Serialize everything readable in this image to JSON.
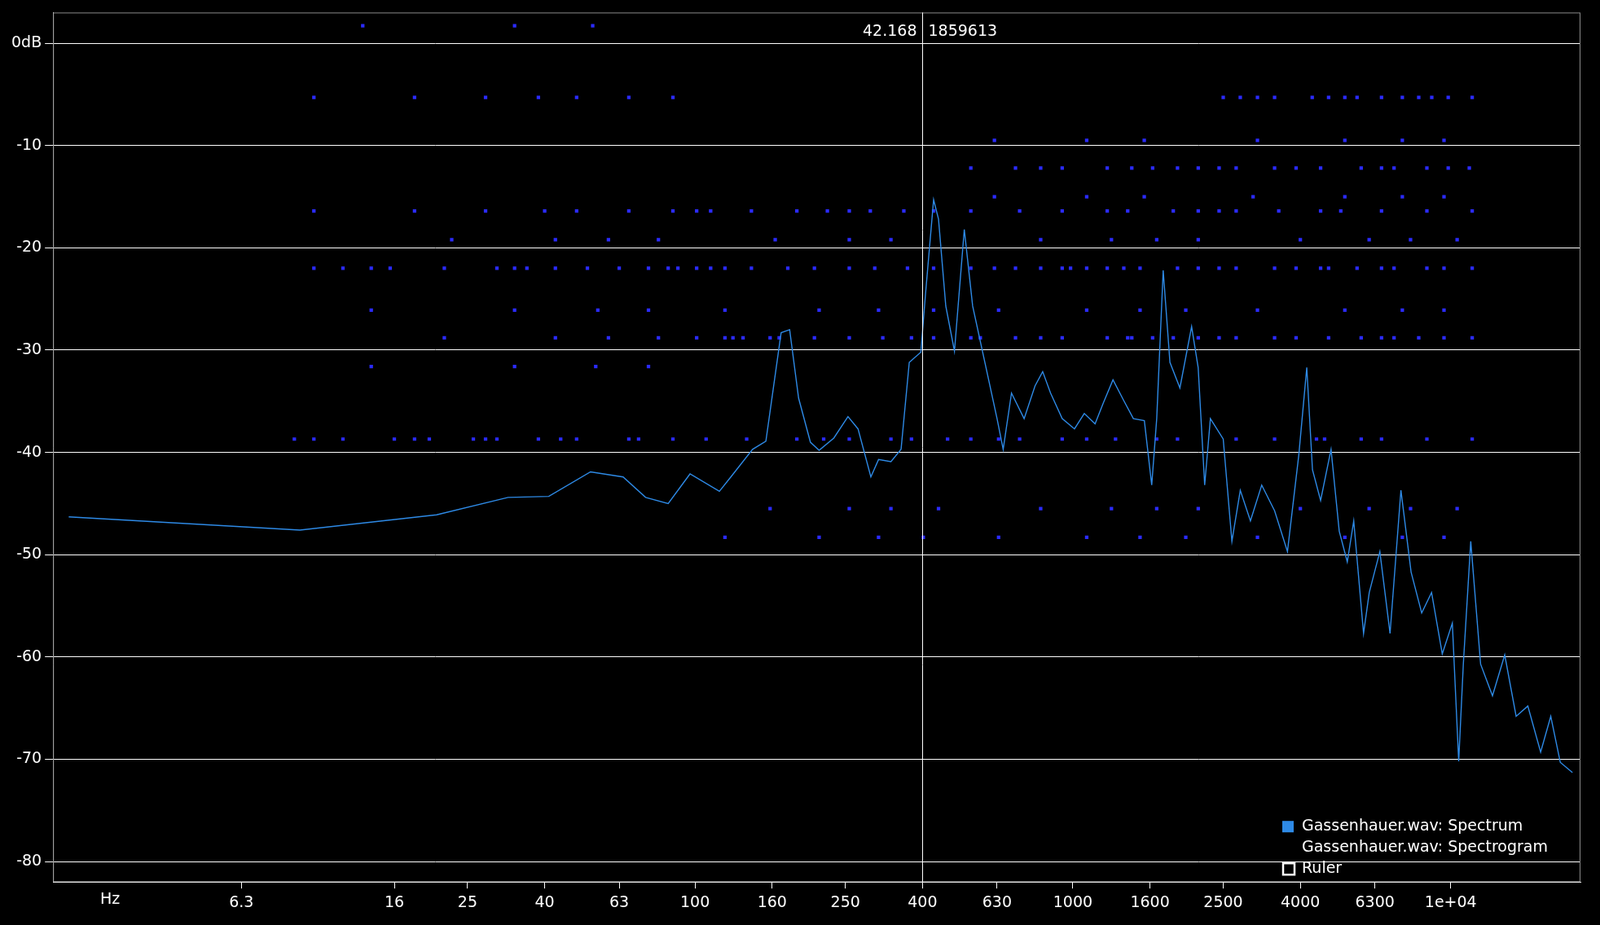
{
  "chart_data": {
    "type": "line",
    "xlabel": "Hz",
    "log": "x",
    "grid": "y",
    "legend": "lower right",
    "xlim": [
      2,
      22050
    ],
    "xticks": [
      6.3,
      16,
      25,
      40,
      63,
      100,
      160,
      250,
      400,
      630,
      1000,
      1600,
      2500,
      4000,
      6300,
      {
        "value": 10000,
        "label": "1e+04"
      }
    ],
    "ylim": [
      -82,
      3
    ],
    "yticks": [
      {
        "value": 0,
        "label": "0dB"
      },
      -10,
      -20,
      -30,
      -40,
      -50,
      -60,
      -70,
      -80
    ],
    "series": [
      {
        "name": "Gassenhauer.wav: Spectrum",
        "type": "line",
        "color": "#2e8ae6",
        "x": [
          2.2,
          9.0,
          20.7,
          32,
          41,
          52.9,
          64.5,
          74,
          84.9,
          97,
          116,
          125,
          142,
          154,
          169,
          178,
          188,
          202,
          213,
          233,
          254,
          270,
          292,
          306,
          330,
          351,
          369,
          396,
          407,
          428,
          441,
          461,
          486,
          516,
          543,
          585,
          630,
          654,
          688,
          743,
          794,
          832,
          873,
          937,
          1010,
          1072,
          1145,
          1203,
          1277,
          1362,
          1446,
          1546,
          1617,
          1667,
          1734,
          1807,
          1920,
          2062,
          2146,
          2233,
          2312,
          2500,
          2636,
          2774,
          2951,
          3161,
          3419,
          3698,
          3964,
          4160,
          4307,
          4526,
          4823,
          5070,
          5325,
          5538,
          5880,
          6088,
          6494,
          6910,
          7384,
          7856,
          8380,
          8900,
          9500,
          10100,
          10500,
          10800,
          11300,
          12000,
          12900,
          13900,
          14900,
          16000,
          17300,
          18400,
          19500,
          21000
        ],
        "values": [
          -46.3,
          -47.6,
          -46.1,
          -44.4,
          -44.3,
          -41.9,
          -42.4,
          -44.4,
          -45.0,
          -42.1,
          -43.8,
          -42.3,
          -39.7,
          -38.9,
          -28.3,
          -28.0,
          -34.7,
          -39.0,
          -39.8,
          -38.6,
          -36.5,
          -37.7,
          -42.4,
          -40.7,
          -40.9,
          -39.7,
          -31.2,
          -30.2,
          -24.7,
          -15.3,
          -17.2,
          -25.7,
          -30.1,
          -18.2,
          -25.7,
          -31.2,
          -36.7,
          -39.7,
          -34.2,
          -36.7,
          -33.5,
          -32.1,
          -34.2,
          -36.7,
          -37.7,
          -36.2,
          -37.2,
          -35.2,
          -32.9,
          -34.9,
          -36.7,
          -36.9,
          -43.2,
          -36.7,
          -22.2,
          -31.2,
          -33.7,
          -27.7,
          -31.7,
          -43.2,
          -36.7,
          -38.7,
          -48.7,
          -43.7,
          -46.7,
          -43.2,
          -45.7,
          -49.7,
          -40.2,
          -31.7,
          -41.7,
          -44.7,
          -39.7,
          -47.7,
          -50.7,
          -46.7,
          -57.7,
          -53.7,
          -49.7,
          -57.7,
          -43.7,
          -51.7,
          -55.7,
          -53.7,
          -59.7,
          -56.7,
          -70.2,
          -60.7,
          -48.7,
          -60.7,
          -63.8,
          -59.8,
          -65.8,
          -64.8,
          -69.3,
          -65.8,
          -70.3,
          -71.3
        ]
      },
      {
        "name": "Gassenhauer.wav: Spectrogram",
        "type": "scatter",
        "color": "#2b2bff",
        "marker": "square",
        "rows": [
          {
            "value": 1.7,
            "x": [
              13.2,
              33.3,
              53.6
            ]
          },
          {
            "value": -5.3,
            "x": [
              9.8,
              18.1,
              27.9,
              38.5,
              48.6,
              66.8,
              87.4,
              2500,
              2774,
              3080,
              3419,
              4300,
              4752,
              5246,
              5652,
              6561,
              7447,
              8230,
              8910,
              9850,
              11400
            ]
          },
          {
            "value": -9.5,
            "x": [
              620,
              1088,
              1545,
              3080,
              5246,
              7447,
              9600
            ]
          },
          {
            "value": -12.2,
            "x": [
              537,
              705,
              822,
              937,
              1233,
              1432,
              1626,
              1892,
              2147,
              2438,
              2705,
              3419,
              3898,
              4526,
              5795,
              6561,
              7080,
              8650,
              9850,
              11200
            ]
          },
          {
            "value": -15.0,
            "x": [
              620,
              1088,
              1545,
              2999,
              5246,
              7447,
              9600
            ]
          },
          {
            "value": -16.4,
            "x": [
              9.8,
              18.1,
              27.9,
              40,
              48.6,
              66.8,
              87.4,
              101,
              110,
              141,
              186,
              224,
              256,
              291,
              357,
              428,
              537,
              723,
              937,
              1233,
              1397,
              1844,
              2147,
              2438,
              2705,
              3507,
              4526,
              5118,
              6561,
              8650,
              11400
            ]
          },
          {
            "value": -19.2,
            "x": [
              22.7,
              42.7,
              59,
              80,
              163,
              256,
              330,
              822,
              1265,
              1667,
              2147,
              4000,
              6084,
              7830,
              10400
            ]
          },
          {
            "value": -22.0,
            "x": [
              9.8,
              11.7,
              13.9,
              15.6,
              21.7,
              29.9,
              33.3,
              35.9,
              42.7,
              51.9,
              63,
              75.3,
              84.9,
              90.1,
              101,
              110,
              120,
              141,
              176,
              207,
              256,
              299,
              365,
              428,
              537,
              620,
              705,
              822,
              937,
              986,
              1088,
              1233,
              1364,
              1506,
              1892,
              2147,
              2438,
              2705,
              3419,
              3898,
              4526,
              4752,
              5652,
              6561,
              7080,
              8650,
              9600,
              11400
            ]
          },
          {
            "value": -26.1,
            "x": [
              13.9,
              33.3,
              55.3,
              75.3,
              120,
              213,
              306,
              428,
              636,
              1088,
              1506,
              1990,
              3080,
              5246,
              7447,
              9600
            ]
          },
          {
            "value": -28.8,
            "x": [
              21.7,
              42.7,
              59,
              80,
              101,
              120,
              126,
              134,
              158,
              167,
              207,
              256,
              314,
              374,
              428,
              537,
              569,
              705,
              822,
              937,
              1233,
              1397,
              1432,
              1626,
              1844,
              2147,
              2438,
              2705,
              3419,
              3898,
              4752,
              5795,
              6561,
              7080,
              8230,
              9600,
              11400
            ]
          },
          {
            "value": -31.6,
            "x": [
              13.9,
              33.3,
              54.6,
              75.3
            ]
          },
          {
            "value": -38.7,
            "x": [
              8.7,
              9.8,
              11.7,
              16,
              18.1,
              19.8,
              25.9,
              27.9,
              29.9,
              38.5,
              44.1,
              48.6,
              66.8,
              70.9,
              87.4,
              107,
              137,
              186,
              219,
              256,
              330,
              374,
              466,
              537,
              636,
              723,
              937,
              1088,
              1297,
              1667,
              1892,
              2705,
              3419,
              4414,
              4637,
              5795,
              6561,
              8650,
              11400
            ]
          },
          {
            "value": -45.5,
            "x": [
              158,
              256,
              330,
              441,
              822,
              1265,
              1667,
              2147,
              4000,
              6084,
              7830,
              10400
            ]
          },
          {
            "value": -48.3,
            "x": [
              120,
              213,
              306,
              402,
              636,
              1088,
              1506,
              1990,
              3080,
              5246,
              7447,
              9600
            ]
          }
        ]
      },
      {
        "name": "Ruler",
        "type": "ruler",
        "color": "#ffffff",
        "x": [
          400
        ],
        "labels": [
          "42.168",
          "1859613"
        ]
      }
    ]
  }
}
